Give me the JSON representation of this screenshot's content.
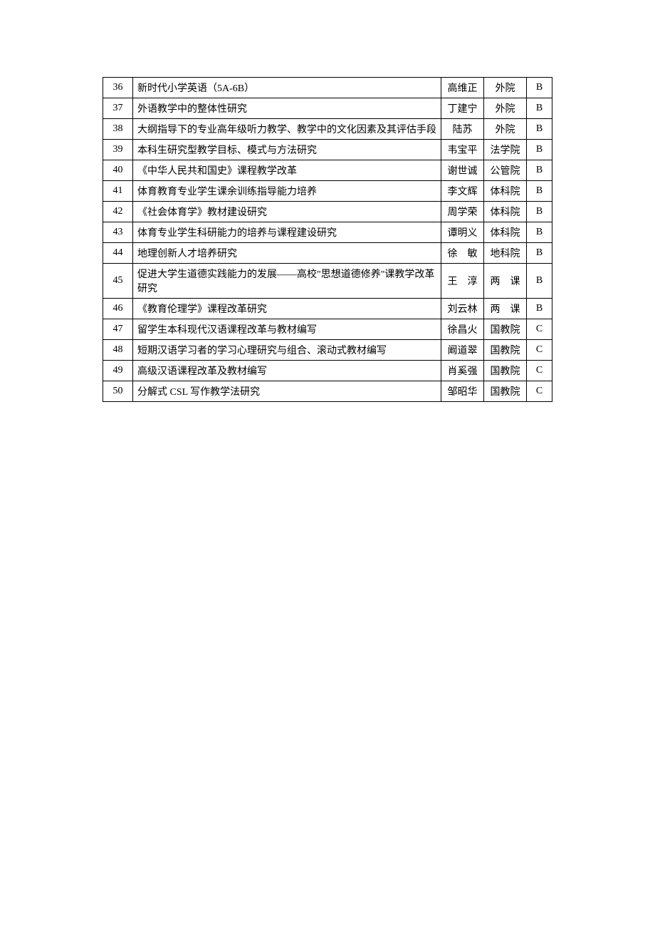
{
  "table": {
    "rows": [
      {
        "num": "36",
        "title": "新时代小学英语（5A-6B）",
        "person": "高维正",
        "dept": "外院",
        "grade": "B"
      },
      {
        "num": "37",
        "title": "外语教学中的整体性研究",
        "person": "丁建宁",
        "dept": "外院",
        "grade": "B"
      },
      {
        "num": "38",
        "title": "大纲指导下的专业高年级听力教学、教学中的文化因素及其评估手段",
        "person": "陆苏",
        "dept": "外院",
        "grade": "B"
      },
      {
        "num": "39",
        "title": "本科生研究型教学目标、模式与方法研究",
        "person": "韦宝平",
        "dept": "法学院",
        "grade": "B"
      },
      {
        "num": "40",
        "title": "《中华人民共和国史》课程教学改革",
        "person": "谢世诚",
        "dept": "公管院",
        "grade": "B"
      },
      {
        "num": "41",
        "title": "体育教育专业学生课余训练指导能力培养",
        "person": "李文辉",
        "dept": "体科院",
        "grade": "B"
      },
      {
        "num": "42",
        "title": "《社会体育学》教材建设研究",
        "person": "周学荣",
        "dept": "体科院",
        "grade": "B"
      },
      {
        "num": "43",
        "title": "体育专业学生科研能力的培养与课程建设研究",
        "person": "谭明义",
        "dept": "体科院",
        "grade": "B"
      },
      {
        "num": "44",
        "title": "地理创新人才培养研究",
        "person": "徐　敏",
        "dept": "地科院",
        "grade": "B"
      },
      {
        "num": "45",
        "title": "促进大学生道德实践能力的发展——高校\"思想道德修养\"课教学改革研究",
        "person": "王　淳",
        "dept": "两　课",
        "grade": "B"
      },
      {
        "num": "46",
        "title": "《教育伦理学》课程改革研究",
        "person": "刘云林",
        "dept": "两　课",
        "grade": "B"
      },
      {
        "num": "47",
        "title": "留学生本科现代汉语课程改革与教材编写",
        "person": "徐昌火",
        "dept": "国教院",
        "grade": "C"
      },
      {
        "num": "48",
        "title": "短期汉语学习者的学习心理研究与组合、滚动式教材编写",
        "person": "阚道翠",
        "dept": "国教院",
        "grade": "C"
      },
      {
        "num": "49",
        "title": "高级汉语课程改革及教材编写",
        "person": "肖奚强",
        "dept": "国教院",
        "grade": "C"
      },
      {
        "num": "50",
        "title": "分解式 CSL 写作教学法研究",
        "person": "邹昭华",
        "dept": "国教院",
        "grade": "C"
      }
    ]
  }
}
